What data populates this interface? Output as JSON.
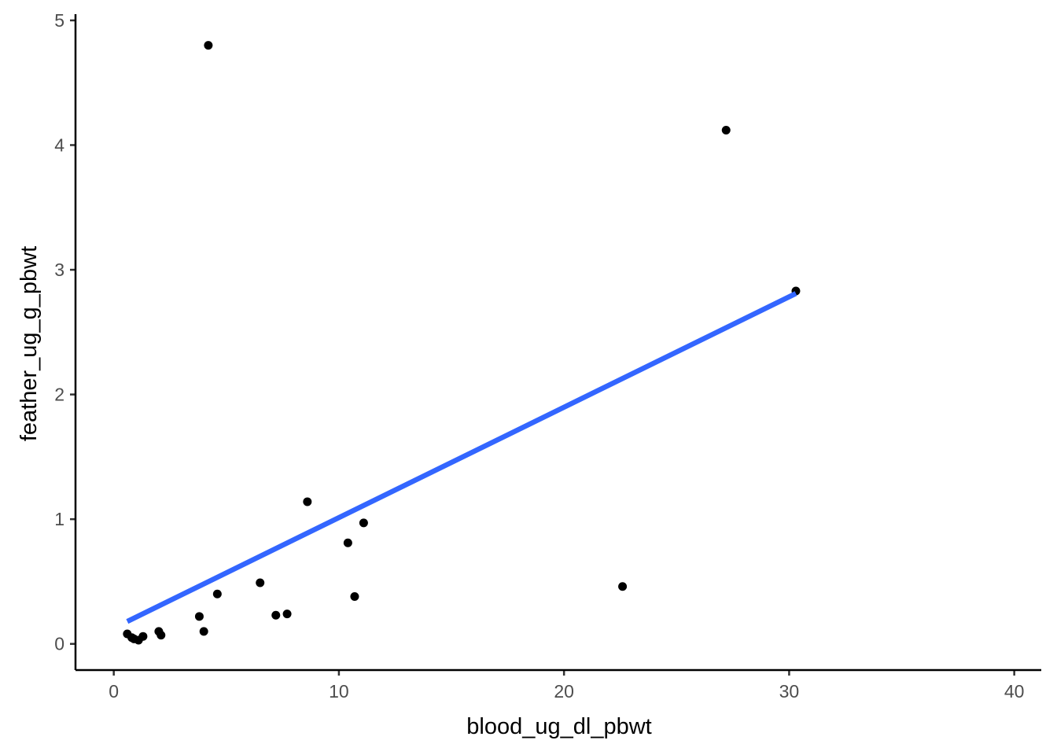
{
  "chart_data": {
    "type": "scatter",
    "title": "",
    "xlabel": "blood_ug_dl_pbwt",
    "ylabel": "feather_ug_g_pbwt",
    "xlim": [
      -1.7,
      41.2
    ],
    "ylim": [
      -0.21,
      5.05
    ],
    "xticks": [
      0,
      10,
      20,
      30,
      40
    ],
    "yticks": [
      0,
      1,
      2,
      3,
      4,
      5
    ],
    "grid": false,
    "points": [
      {
        "x": 0.6,
        "y": 0.08
      },
      {
        "x": 0.8,
        "y": 0.05
      },
      {
        "x": 0.9,
        "y": 0.04
      },
      {
        "x": 1.1,
        "y": 0.03
      },
      {
        "x": 1.3,
        "y": 0.06
      },
      {
        "x": 2.0,
        "y": 0.1
      },
      {
        "x": 2.1,
        "y": 0.07
      },
      {
        "x": 3.8,
        "y": 0.22
      },
      {
        "x": 4.0,
        "y": 0.1
      },
      {
        "x": 4.2,
        "y": 4.8
      },
      {
        "x": 4.6,
        "y": 0.4
      },
      {
        "x": 6.5,
        "y": 0.49
      },
      {
        "x": 7.2,
        "y": 0.23
      },
      {
        "x": 7.7,
        "y": 0.24
      },
      {
        "x": 8.6,
        "y": 1.14
      },
      {
        "x": 10.4,
        "y": 0.81
      },
      {
        "x": 10.7,
        "y": 0.38
      },
      {
        "x": 11.1,
        "y": 0.97
      },
      {
        "x": 22.6,
        "y": 0.46
      },
      {
        "x": 27.2,
        "y": 4.12
      },
      {
        "x": 30.3,
        "y": 2.83
      }
    ],
    "fit_line": {
      "method": "linear",
      "color": "#3366FF",
      "x": [
        0.6,
        30.3
      ],
      "y": [
        0.18,
        2.81
      ]
    }
  }
}
